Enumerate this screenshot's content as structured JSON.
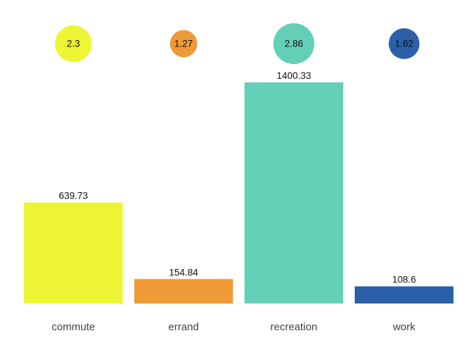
{
  "chart_data": {
    "type": "bar",
    "categories": [
      "commute",
      "errand",
      "recreation",
      "work"
    ],
    "series": [
      {
        "values": [
          639.73,
          154.84,
          1400.33,
          108.6
        ]
      },
      {
        "values": [
          2.3,
          1.27,
          2.86,
          1.62
        ]
      }
    ],
    "colors": [
      "#eef535",
      "#ee9a37",
      "#62cfb6",
      "#2b5fa8"
    ],
    "ylim": [
      0,
      1400.33
    ],
    "grid": false,
    "legend": "none"
  }
}
